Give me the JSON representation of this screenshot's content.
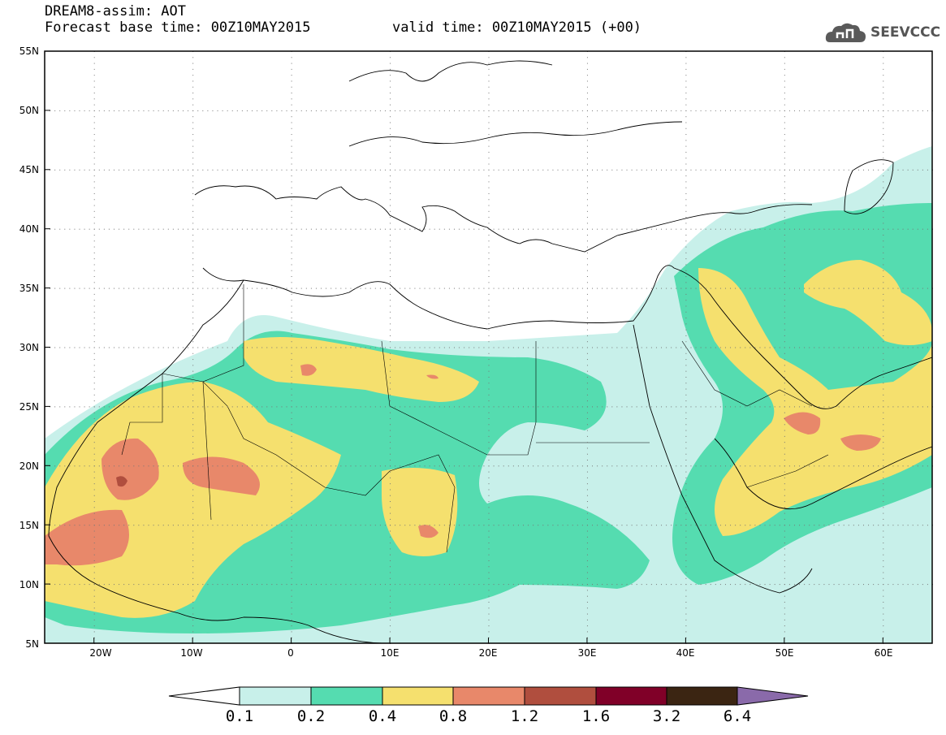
{
  "header": {
    "title": "DREAM8-assim: AOT",
    "base_time": "Forecast base time: 00Z10MAY2015",
    "valid_time": "valid time: 00Z10MAY2015 (+00)",
    "logo_text": "SEEVCCC"
  },
  "map": {
    "variable": "AOT",
    "projection": "lat-lon",
    "extent": {
      "lon_min": -25,
      "lon_max": 65,
      "lat_min": 5,
      "lat_max": 55
    },
    "lat_labels": [
      "55N",
      "50N",
      "45N",
      "40N",
      "35N",
      "30N",
      "25N",
      "20N",
      "15N",
      "10N",
      "5N"
    ],
    "lon_labels": [
      "20W",
      "10W",
      "0",
      "10E",
      "20E",
      "30E",
      "40E",
      "50E",
      "60E"
    ]
  },
  "colorbar": {
    "levels": [
      "0.1",
      "0.2",
      "0.4",
      "0.8",
      "1.2",
      "1.6",
      "3.2",
      "6.4"
    ],
    "colors": [
      "#c8f0ea",
      "#55dcb0",
      "#f5e06e",
      "#e8886a",
      "#b04e3e",
      "#800028",
      "#3b2512",
      "#8a6aaa"
    ],
    "low_end_color": "#ffffff"
  }
}
